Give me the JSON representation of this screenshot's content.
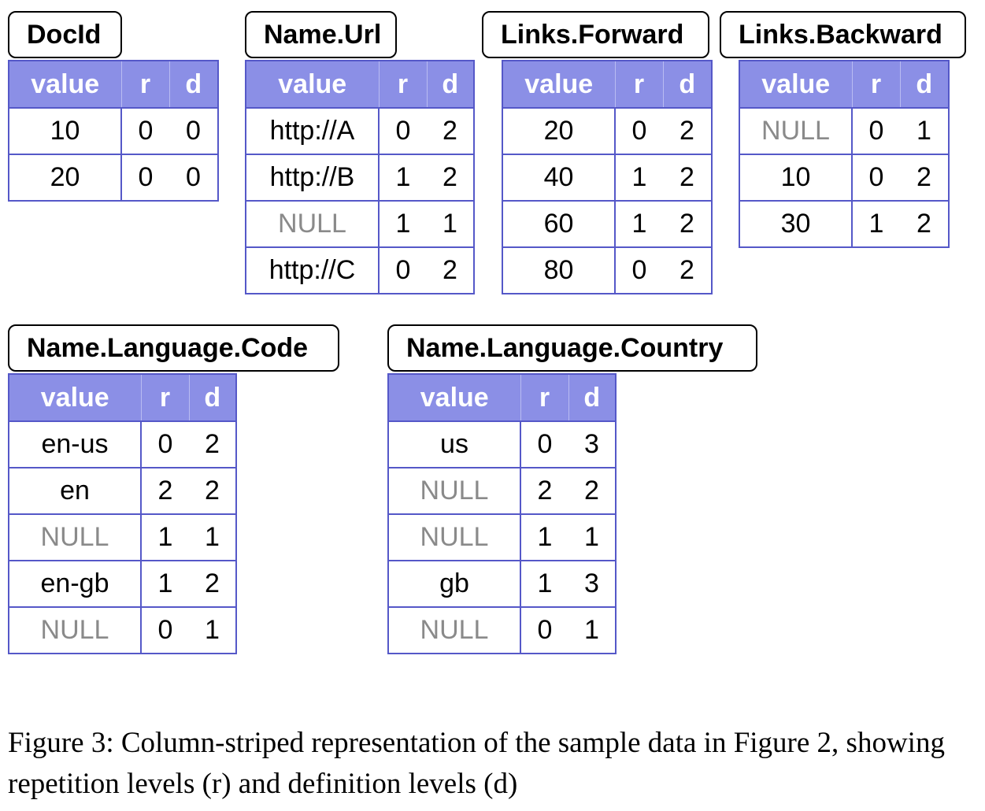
{
  "columns": [
    {
      "title": "DocId",
      "headers": [
        "value",
        "r",
        "d"
      ],
      "rows": [
        {
          "value": "10",
          "r": "0",
          "d": "0",
          "null": false
        },
        {
          "value": "20",
          "r": "0",
          "d": "0",
          "null": false
        }
      ]
    },
    {
      "title": "Name.Url",
      "headers": [
        "value",
        "r",
        "d"
      ],
      "rows": [
        {
          "value": "http://A",
          "r": "0",
          "d": "2",
          "null": false
        },
        {
          "value": "http://B",
          "r": "1",
          "d": "2",
          "null": false
        },
        {
          "value": "NULL",
          "r": "1",
          "d": "1",
          "null": true
        },
        {
          "value": "http://C",
          "r": "0",
          "d": "2",
          "null": false
        }
      ]
    },
    {
      "title": "Links.Forward",
      "headers": [
        "value",
        "r",
        "d"
      ],
      "rows": [
        {
          "value": "20",
          "r": "0",
          "d": "2",
          "null": false
        },
        {
          "value": "40",
          "r": "1",
          "d": "2",
          "null": false
        },
        {
          "value": "60",
          "r": "1",
          "d": "2",
          "null": false
        },
        {
          "value": "80",
          "r": "0",
          "d": "2",
          "null": false
        }
      ]
    },
    {
      "title": "Links.Backward",
      "headers": [
        "value",
        "r",
        "d"
      ],
      "rows": [
        {
          "value": "NULL",
          "r": "0",
          "d": "1",
          "null": true
        },
        {
          "value": "10",
          "r": "0",
          "d": "2",
          "null": false
        },
        {
          "value": "30",
          "r": "1",
          "d": "2",
          "null": false
        }
      ]
    },
    {
      "title": "Name.Language.Code",
      "headers": [
        "value",
        "r",
        "d"
      ],
      "rows": [
        {
          "value": "en-us",
          "r": "0",
          "d": "2",
          "null": false
        },
        {
          "value": "en",
          "r": "2",
          "d": "2",
          "null": false
        },
        {
          "value": "NULL",
          "r": "1",
          "d": "1",
          "null": true
        },
        {
          "value": "en-gb",
          "r": "1",
          "d": "2",
          "null": false
        },
        {
          "value": "NULL",
          "r": "0",
          "d": "1",
          "null": true
        }
      ]
    },
    {
      "title": "Name.Language.Country",
      "headers": [
        "value",
        "r",
        "d"
      ],
      "rows": [
        {
          "value": "us",
          "r": "0",
          "d": "3",
          "null": false
        },
        {
          "value": "NULL",
          "r": "2",
          "d": "2",
          "null": true
        },
        {
          "value": "NULL",
          "r": "1",
          "d": "1",
          "null": true
        },
        {
          "value": "gb",
          "r": "1",
          "d": "3",
          "null": false
        },
        {
          "value": "NULL",
          "r": "0",
          "d": "1",
          "null": true
        }
      ]
    }
  ],
  "caption": "Figure 3: Column-striped representation of the sample data in Figure 2, showing repetition levels (r) and definition levels (d)"
}
